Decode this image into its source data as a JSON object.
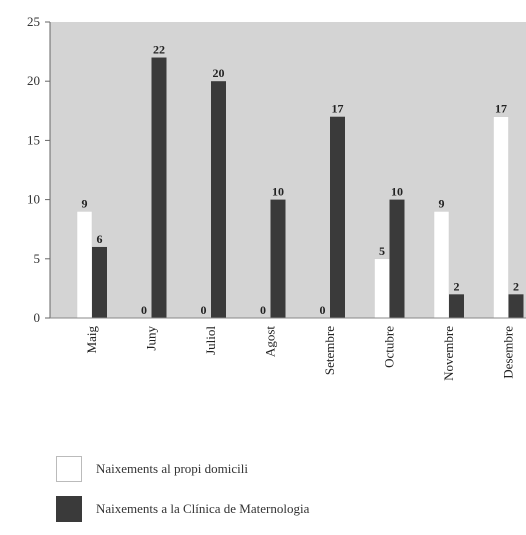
{
  "chart_data": {
    "type": "bar",
    "categories": [
      "Maig",
      "Juny",
      "Juliol",
      "Agost",
      "Setembre",
      "Octubre",
      "Novembre",
      "Desembre"
    ],
    "series": [
      {
        "name": "Naixements al propi domicili",
        "color": "#ffffff",
        "values": [
          9,
          0,
          0,
          0,
          0,
          5,
          9,
          17
        ]
      },
      {
        "name": "Naixements a la Clínica de Maternologia",
        "color": "#3a3a3a",
        "values": [
          6,
          22,
          20,
          10,
          17,
          10,
          2,
          2
        ]
      }
    ],
    "ylim": [
      0,
      25
    ],
    "yticks": [
      0,
      5,
      10,
      15,
      20,
      25
    ],
    "plot_background": "#d4d4d4",
    "grid": false,
    "legend_position": "bottom-left"
  }
}
